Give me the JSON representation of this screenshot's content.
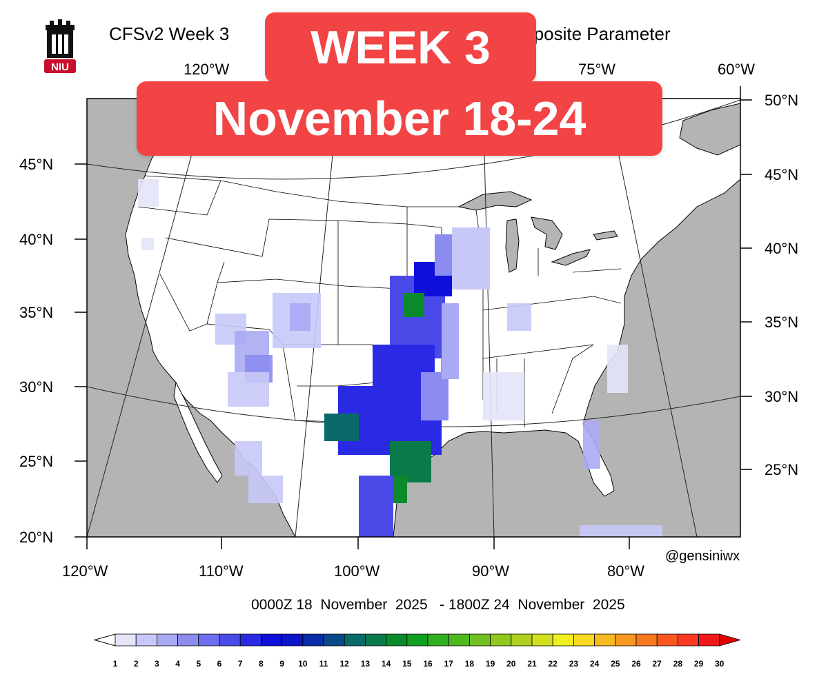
{
  "title": "CFSv2 Week 3",
  "title_right": "mposite Parameter",
  "banner": {
    "line1": "WEEK 3",
    "line2": "November 18-24"
  },
  "logo": {
    "text": "NIU",
    "colors": {
      "dark": "#111111",
      "red": "#c8102e"
    }
  },
  "top_lon_labels": [
    "120°W",
    "75°W",
    "60°W"
  ],
  "left_lat_labels": [
    "45°N",
    "40°N",
    "35°N",
    "30°N",
    "25°N",
    "20°N"
  ],
  "right_lat_labels": [
    "50°N",
    "45°N",
    "40°N",
    "35°N",
    "30°N",
    "25°N"
  ],
  "bottom_lon_labels": [
    "120°W",
    "110°W",
    "100°W",
    "90°W",
    "80°W"
  ],
  "credit": "@gensiniwx",
  "date_range": "0000Z 18  November  2025   - 1800Z 24  November  2025",
  "colorbar": {
    "labels": [
      "1",
      "2",
      "3",
      "4",
      "5",
      "6",
      "7",
      "8",
      "9",
      "10",
      "11",
      "12",
      "13",
      "14",
      "15",
      "16",
      "17",
      "18",
      "19",
      "20",
      "21",
      "22",
      "23",
      "24",
      "25",
      "26",
      "27",
      "28",
      "29",
      "30"
    ],
    "colors": [
      "#e4e4fa",
      "#c8c8f8",
      "#aaaaf4",
      "#8c8cf0",
      "#6e6eec",
      "#4a4ae8",
      "#2a2ae4",
      "#0f0fdc",
      "#0a16c8",
      "#0a2aa8",
      "#0a4a8a",
      "#0a6a6a",
      "#0a7a4a",
      "#0a8a2a",
      "#10a020",
      "#30b020",
      "#50b820",
      "#70c020",
      "#90c820",
      "#b0d020",
      "#d0e020",
      "#f0f020",
      "#f8d820",
      "#f8b820",
      "#f89820",
      "#f87820",
      "#f85820",
      "#f83820",
      "#f01818",
      "#e00000"
    ]
  },
  "map_colors": {
    "land": "#ffffff",
    "ocean": "#b4b4b4",
    "border": "#000000"
  }
}
